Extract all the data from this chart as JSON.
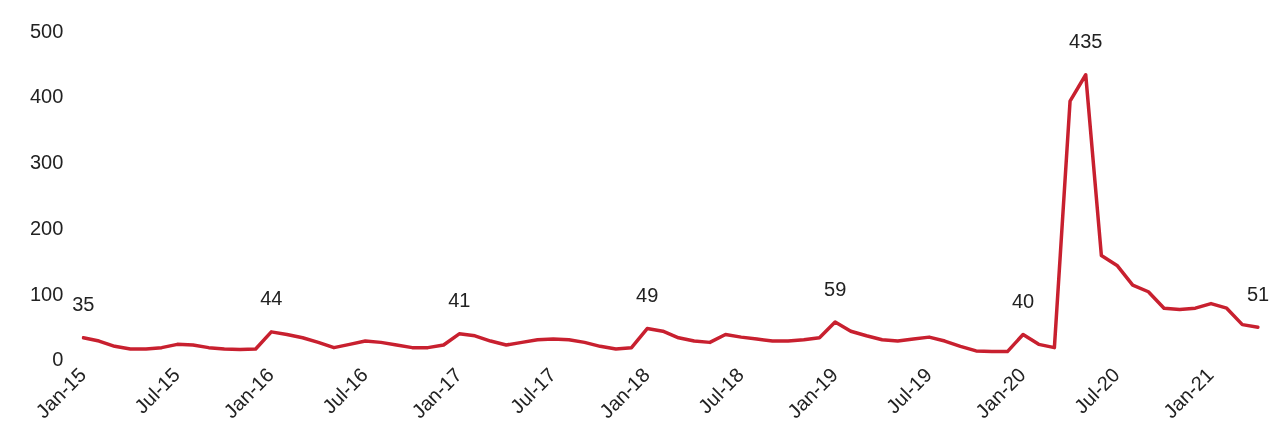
{
  "chart_data": {
    "type": "line",
    "categories": [
      "Jan-15",
      null,
      null,
      null,
      null,
      null,
      "Jul-15",
      null,
      null,
      null,
      null,
      null,
      "Jan-16",
      null,
      null,
      null,
      null,
      null,
      "Jul-16",
      null,
      null,
      null,
      null,
      null,
      "Jan-17",
      null,
      null,
      null,
      null,
      null,
      "Jul-17",
      null,
      null,
      null,
      null,
      null,
      "Jan-18",
      null,
      null,
      null,
      null,
      null,
      "Jul-18",
      null,
      null,
      null,
      null,
      null,
      "Jan-19",
      null,
      null,
      null,
      null,
      null,
      "Jul-19",
      null,
      null,
      null,
      null,
      null,
      "Jan-20",
      null,
      null,
      null,
      null,
      null,
      "Jul-20",
      null,
      null,
      null,
      null,
      null,
      "Jan-21",
      null,
      null,
      null
    ],
    "series": [
      {
        "color": "#c8202f",
        "values": [
          35,
          30,
          22,
          18,
          18,
          20,
          25,
          24,
          20,
          18,
          17,
          18,
          44,
          40,
          35,
          28,
          20,
          25,
          30,
          28,
          24,
          20,
          20,
          24,
          41,
          38,
          30,
          24,
          28,
          32,
          33,
          32,
          28,
          22,
          18,
          20,
          49,
          45,
          35,
          30,
          28,
          40,
          36,
          33,
          30,
          30,
          32,
          35,
          59,
          45,
          38,
          32,
          30,
          33,
          36,
          30,
          22,
          15,
          14,
          14,
          40,
          25,
          20,
          395,
          435,
          160,
          145,
          115,
          105,
          80,
          78,
          80,
          87,
          80,
          55,
          51
        ],
        "value_labels": [
          "35",
          null,
          null,
          null,
          null,
          null,
          null,
          null,
          null,
          null,
          null,
          null,
          "44",
          null,
          null,
          null,
          null,
          null,
          null,
          null,
          null,
          null,
          null,
          null,
          "41",
          null,
          null,
          null,
          null,
          null,
          null,
          null,
          null,
          null,
          null,
          null,
          "49",
          null,
          null,
          null,
          null,
          null,
          null,
          null,
          null,
          null,
          null,
          null,
          "59",
          null,
          null,
          null,
          null,
          null,
          null,
          null,
          null,
          null,
          null,
          null,
          "40",
          null,
          null,
          null,
          "435",
          null,
          null,
          null,
          null,
          null,
          null,
          null,
          null,
          null,
          null,
          "51"
        ]
      }
    ],
    "ylim": [
      0,
      500
    ],
    "yticks": [
      0,
      100,
      200,
      300,
      400,
      500
    ],
    "grid": false,
    "legend": false,
    "marker": "none",
    "line_style": "solid"
  }
}
